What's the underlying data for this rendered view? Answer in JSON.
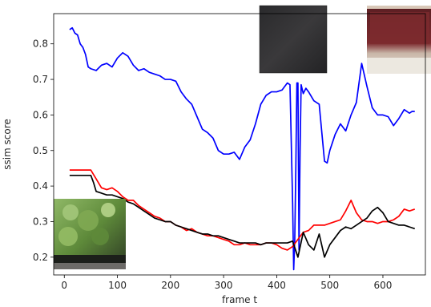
{
  "chart_data": {
    "type": "line",
    "title": "",
    "xlabel": "frame t",
    "ylabel": "ssim score",
    "xlim": [
      -20,
      680
    ],
    "ylim": [
      0.15,
      0.885
    ],
    "xticks": [
      0,
      100,
      200,
      300,
      400,
      500,
      600
    ],
    "yticks": [
      0.2,
      0.3,
      0.4,
      0.5,
      0.6,
      0.7,
      0.8
    ],
    "grid": false,
    "legend": "none",
    "series": [
      {
        "color": "#0000ff",
        "x": [
          10,
          15,
          20,
          25,
          30,
          35,
          40,
          45,
          50,
          60,
          70,
          80,
          90,
          100,
          110,
          120,
          130,
          140,
          150,
          160,
          170,
          180,
          190,
          200,
          210,
          220,
          230,
          240,
          250,
          260,
          270,
          280,
          290,
          300,
          310,
          320,
          330,
          340,
          350,
          360,
          370,
          380,
          390,
          400,
          410,
          420,
          425,
          430,
          432,
          434,
          436,
          438,
          440,
          442,
          444,
          446,
          450,
          455,
          460,
          470,
          480,
          490,
          495,
          500,
          510,
          520,
          530,
          540,
          550,
          560,
          570,
          580,
          590,
          600,
          610,
          620,
          630,
          640,
          650,
          655,
          660
        ],
        "y": [
          0.84,
          0.845,
          0.83,
          0.825,
          0.8,
          0.79,
          0.77,
          0.735,
          0.73,
          0.725,
          0.74,
          0.745,
          0.735,
          0.76,
          0.775,
          0.765,
          0.74,
          0.725,
          0.73,
          0.72,
          0.715,
          0.71,
          0.7,
          0.7,
          0.695,
          0.665,
          0.645,
          0.63,
          0.595,
          0.56,
          0.55,
          0.535,
          0.5,
          0.49,
          0.49,
          0.495,
          0.475,
          0.51,
          0.53,
          0.575,
          0.63,
          0.655,
          0.665,
          0.665,
          0.67,
          0.69,
          0.685,
          0.35,
          0.165,
          0.25,
          0.45,
          0.69,
          0.69,
          0.22,
          0.5,
          0.685,
          0.66,
          0.675,
          0.665,
          0.64,
          0.63,
          0.47,
          0.465,
          0.5,
          0.545,
          0.575,
          0.555,
          0.6,
          0.635,
          0.745,
          0.68,
          0.62,
          0.6,
          0.6,
          0.595,
          0.57,
          0.59,
          0.615,
          0.605,
          0.61,
          0.61
        ]
      },
      {
        "color": "#ff0000",
        "x": [
          10,
          30,
          50,
          60,
          70,
          80,
          90,
          100,
          110,
          120,
          130,
          140,
          150,
          160,
          170,
          180,
          190,
          200,
          210,
          220,
          230,
          240,
          250,
          260,
          270,
          280,
          290,
          300,
          310,
          320,
          330,
          340,
          350,
          360,
          370,
          380,
          390,
          400,
          410,
          420,
          430,
          440,
          450,
          460,
          470,
          480,
          490,
          500,
          510,
          520,
          530,
          540,
          550,
          560,
          570,
          580,
          590,
          600,
          610,
          620,
          630,
          640,
          650,
          660
        ],
        "y": [
          0.445,
          0.445,
          0.445,
          0.42,
          0.395,
          0.39,
          0.395,
          0.385,
          0.37,
          0.36,
          0.36,
          0.345,
          0.335,
          0.325,
          0.315,
          0.31,
          0.3,
          0.3,
          0.29,
          0.285,
          0.275,
          0.28,
          0.27,
          0.265,
          0.26,
          0.26,
          0.255,
          0.25,
          0.245,
          0.235,
          0.235,
          0.24,
          0.235,
          0.235,
          0.235,
          0.24,
          0.24,
          0.235,
          0.225,
          0.22,
          0.23,
          0.25,
          0.27,
          0.275,
          0.29,
          0.29,
          0.29,
          0.295,
          0.3,
          0.305,
          0.33,
          0.36,
          0.325,
          0.305,
          0.3,
          0.3,
          0.295,
          0.3,
          0.3,
          0.305,
          0.315,
          0.335,
          0.33,
          0.335
        ]
      },
      {
        "color": "#000000",
        "x": [
          10,
          30,
          50,
          55,
          60,
          70,
          80,
          90,
          100,
          110,
          120,
          130,
          140,
          150,
          160,
          170,
          180,
          190,
          200,
          210,
          220,
          230,
          240,
          250,
          260,
          270,
          280,
          290,
          300,
          310,
          320,
          330,
          340,
          350,
          360,
          370,
          380,
          390,
          400,
          410,
          420,
          430,
          440,
          450,
          460,
          470,
          480,
          490,
          500,
          510,
          520,
          530,
          540,
          550,
          560,
          570,
          580,
          590,
          600,
          610,
          620,
          630,
          640,
          650,
          660
        ],
        "y": [
          0.43,
          0.43,
          0.43,
          0.41,
          0.385,
          0.38,
          0.375,
          0.375,
          0.37,
          0.365,
          0.355,
          0.35,
          0.34,
          0.33,
          0.32,
          0.31,
          0.305,
          0.3,
          0.3,
          0.29,
          0.285,
          0.28,
          0.275,
          0.27,
          0.265,
          0.265,
          0.26,
          0.26,
          0.255,
          0.25,
          0.245,
          0.24,
          0.24,
          0.24,
          0.24,
          0.235,
          0.24,
          0.24,
          0.24,
          0.24,
          0.24,
          0.245,
          0.2,
          0.27,
          0.235,
          0.22,
          0.265,
          0.2,
          0.235,
          0.255,
          0.275,
          0.285,
          0.28,
          0.29,
          0.3,
          0.31,
          0.33,
          0.34,
          0.325,
          0.3,
          0.295,
          0.29,
          0.29,
          0.285,
          0.28
        ]
      }
    ]
  },
  "thumbnails": [
    {
      "name": "thumbnail-dark-surface",
      "colors": [
        "#2a2a2c",
        "#3a393b",
        "#232325"
      ]
    },
    {
      "name": "thumbnail-red-fabric",
      "colors": [
        "#7c2a2e",
        "#c9b6a8",
        "#e9e4dc"
      ]
    },
    {
      "name": "thumbnail-green-plant",
      "colors": [
        "#5e8a3a",
        "#a3c77a",
        "#2d3a24"
      ]
    }
  ]
}
